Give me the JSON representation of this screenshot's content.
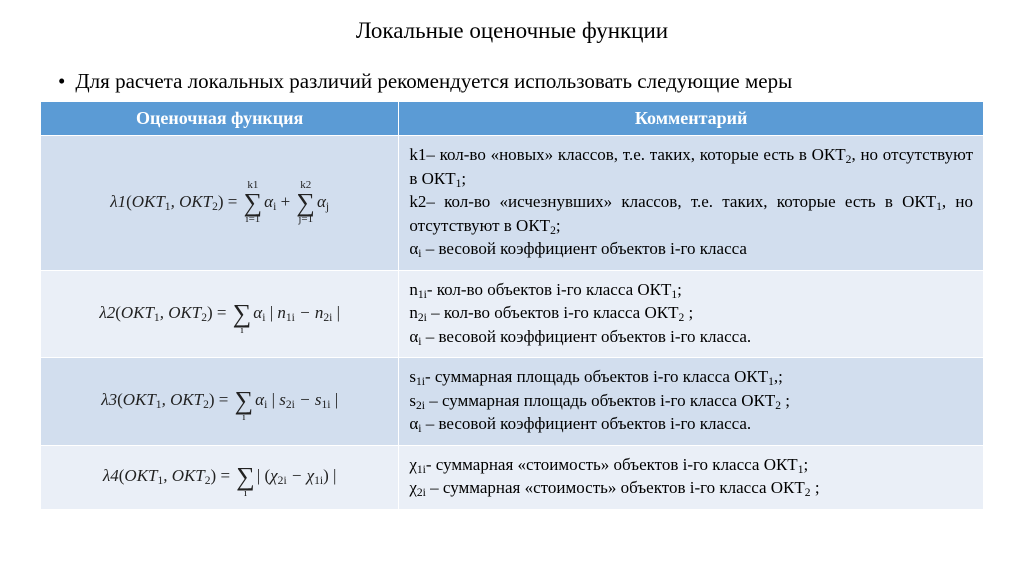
{
  "title": "Локальные оценочные функции",
  "bullet": "Для расчета локальных различий рекомендуется использовать следующие меры",
  "table": {
    "header_bg": "#5b9bd5",
    "header_fg": "#ffffff",
    "band_a_bg": "#eaeff7",
    "band_b_bg": "#d2deee",
    "columns": [
      "Оценочная функция",
      "Комментарий"
    ],
    "rows": [
      {
        "formula": {
          "name": "λ1",
          "args": "ОКТ₁, ОКТ₂",
          "rhs_type": "two_sums",
          "sum1": {
            "upper": "k1",
            "lower": "i=1",
            "term": "αᵢ"
          },
          "sum2": {
            "upper": "k2",
            "lower": "j=1",
            "term": "αⱼ"
          }
        },
        "comment_lines": [
          "k1– кол-во «новых» классов, т.е. таких, которые есть в ОКТ₂, но отсутствуют в ОКТ₁;",
          " k2– кол-во «исчезнувших» классов, т.е. таких, которые есть в ОКТ₁, но отсутствуют в ОКТ₂;",
          "αᵢ – весовой коэффициент  объектов i-го класса"
        ]
      },
      {
        "formula": {
          "name": "λ2",
          "args": "ОКТ₁, ОКТ₂",
          "rhs_type": "single_sum_abs",
          "sum": {
            "lower": "i",
            "coef": "αᵢ",
            "abs_expr": "n₁ᵢ − n₂ᵢ"
          }
        },
        "comment_lines": [
          "n₁ᵢ- кол-во объектов  i-го класса ОКТ₁;",
          "n₂ᵢ –  кол-во объектов  i-го класса ОКТ₂ ;",
          "αᵢ – весовой коэффициент объектов i-го класса."
        ]
      },
      {
        "formula": {
          "name": "λ3",
          "args": "ОКТ₁, ОКТ₂",
          "rhs_type": "single_sum_abs",
          "sum": {
            "lower": "i",
            "coef": "αᵢ",
            "abs_expr": "s₂ᵢ − s₁ᵢ"
          }
        },
        "comment_lines": [
          "s₁ᵢ- суммарная площадь объектов  i-го класса ОКТ₁,;",
          "s₂ᵢ –  суммарная площадь объектов i-го класса ОКТ₂ ;",
          "αᵢ – весовой коэффициент объектов i-го класса."
        ]
      },
      {
        "formula": {
          "name": "λ4",
          "args": "ОКТ₁, ОКТ₂",
          "rhs_type": "single_sum_abs_paren",
          "sum": {
            "lower": "i",
            "abs_expr": "χ₂ᵢ − χ₁ᵢ"
          }
        },
        "comment_lines": [
          "χ₁ᵢ- суммарная «стоимость» объектов  i-го класса ОКТ₁;",
          "χ₂ᵢ –  суммарная «стоимость» объектов  i-го класса ОКТ₂ ;"
        ]
      }
    ]
  }
}
